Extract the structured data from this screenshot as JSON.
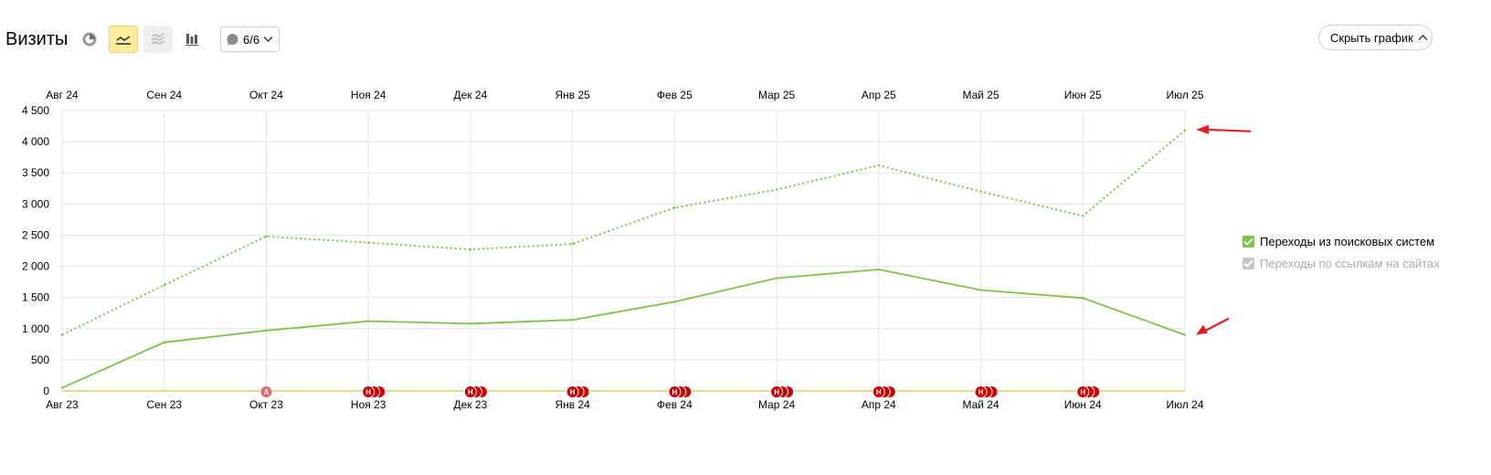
{
  "header": {
    "title": "Визиты",
    "notes_count": "6/6",
    "hide_chart_label": "Скрыть график"
  },
  "icons": {
    "pie": "pie-chart-icon",
    "line": "line-chart-icon",
    "area": "area-chart-icon",
    "bars": "bar-chart-icon",
    "notes": "comment-icon",
    "chevron": "chevron-down-icon"
  },
  "legend": [
    {
      "label": "Переходы из поисковых систем",
      "checked": true,
      "color": "#7dc24b"
    },
    {
      "label": "Переходы по ссылкам на сайтах",
      "checked": true,
      "color": "#c6c6c6"
    }
  ],
  "chart_data": {
    "type": "line",
    "x_top_labels": [
      "Авг 24",
      "Сен 24",
      "Окт 24",
      "Ноя 24",
      "Дек 24",
      "Янв 25",
      "Фев 25",
      "Мар 25",
      "Апр 25",
      "Май 25",
      "Июн 25",
      "Июл 25"
    ],
    "x_bottom_labels": [
      "Авг 23",
      "Сен 23",
      "Окт 23",
      "Ноя 23",
      "Дек 23",
      "Янв 24",
      "Фев 24",
      "Мар 24",
      "Апр 24",
      "Май 24",
      "Июн 24",
      "Июл 24"
    ],
    "y_ticks": [
      "0",
      "500",
      "1 000",
      "1 500",
      "2 000",
      "2 500",
      "3 000",
      "3 500",
      "4 000",
      "4 500"
    ],
    "ylim": [
      0,
      4500
    ],
    "grid": true,
    "series": [
      {
        "name": "Переходы из поисковых систем",
        "period": "current",
        "style": "dotted",
        "color": "#7dc24b",
        "values": [
          900,
          1700,
          2480,
          2380,
          2270,
          2360,
          2940,
          3230,
          3620,
          3200,
          2810,
          4180
        ]
      },
      {
        "name": "Переходы из поисковых систем",
        "period": "previous",
        "style": "solid",
        "color": "#7dc24b",
        "values": [
          50,
          780,
          970,
          1120,
          1080,
          1140,
          1430,
          1810,
          1950,
          1620,
          1490,
          900
        ]
      }
    ],
    "annotations": [
      {
        "type": "A",
        "label": "A",
        "color": "#e9637a",
        "index": 2
      },
      {
        "type": "H",
        "label": "Н",
        "color": "#cc0000",
        "index": 3
      },
      {
        "type": "H",
        "label": "Н",
        "color": "#cc0000",
        "index": 4
      },
      {
        "type": "H",
        "label": "Н",
        "color": "#cc0000",
        "index": 5
      },
      {
        "type": "H",
        "label": "Н",
        "color": "#cc0000",
        "index": 6
      },
      {
        "type": "H",
        "label": "Н",
        "color": "#cc0000",
        "index": 7
      },
      {
        "type": "H",
        "label": "Н",
        "color": "#cc0000",
        "index": 8
      },
      {
        "type": "H",
        "label": "Н",
        "color": "#cc0000",
        "index": 9
      },
      {
        "type": "H",
        "label": "Н",
        "color": "#cc0000",
        "index": 10
      }
    ],
    "arrow_color": "#e31e24"
  }
}
